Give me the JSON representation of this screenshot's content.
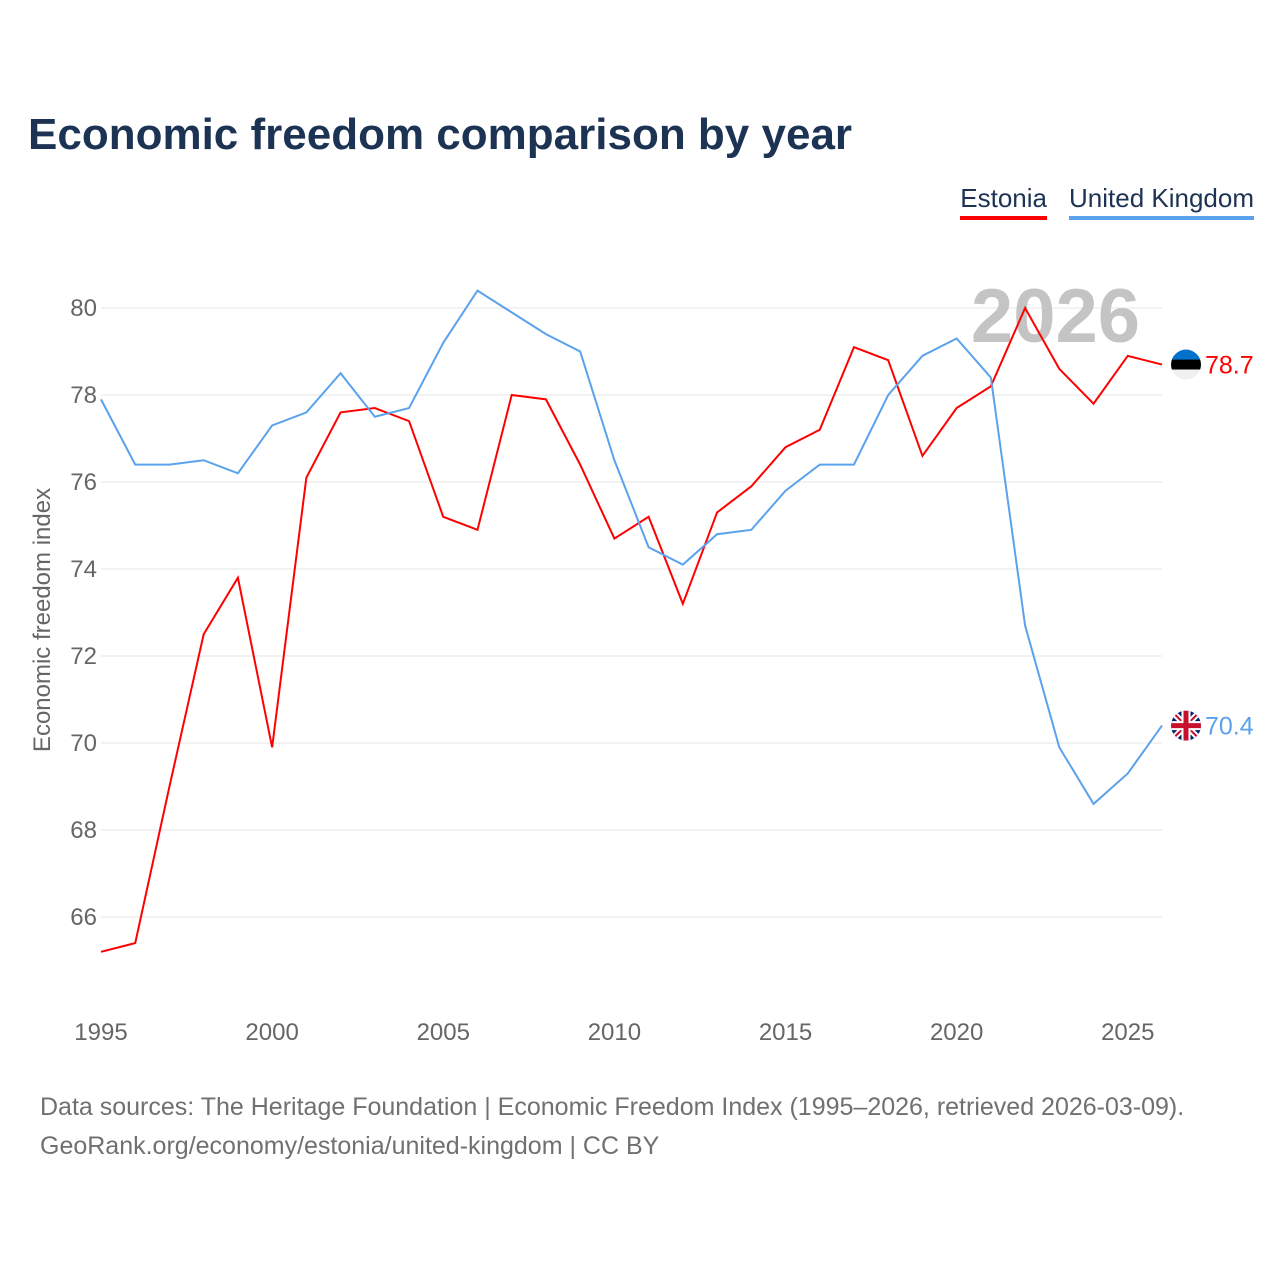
{
  "title": "Economic freedom comparison by year",
  "legend": [
    "Estonia",
    "United Kingdom"
  ],
  "year_watermark": "2026",
  "sources": {
    "line1": "Data sources: The Heritage Foundation | Economic Freedom Index (1995–2026, retrieved 2026-03-09).",
    "line2": "GeoRank.org/economy/estonia/united-kingdom | CC BY"
  },
  "chart_data": {
    "type": "line",
    "title": "Economic freedom comparison by year",
    "xlabel": "",
    "ylabel": "Economic freedom index",
    "x": [
      1995,
      1996,
      1997,
      1998,
      1999,
      2000,
      2001,
      2002,
      2003,
      2004,
      2005,
      2006,
      2007,
      2008,
      2009,
      2010,
      2011,
      2012,
      2013,
      2014,
      2015,
      2016,
      2017,
      2018,
      2019,
      2020,
      2021,
      2022,
      2023,
      2024,
      2025,
      2026
    ],
    "xticks": [
      "1995",
      "2000",
      "2005",
      "2010",
      "2015",
      "2020",
      "2025"
    ],
    "yticks": [
      "66",
      "68",
      "70",
      "72",
      "74",
      "76",
      "78",
      "80"
    ],
    "ylim": [
      64.1,
      81
    ],
    "grid": true,
    "legend_position": "top-right",
    "series": [
      {
        "name": "Estonia",
        "color": "#ff0000",
        "end_label": "78.7",
        "values": [
          65.2,
          65.4,
          69.0,
          72.5,
          73.8,
          69.9,
          76.1,
          77.6,
          77.7,
          77.4,
          75.2,
          74.9,
          78.0,
          77.9,
          76.4,
          74.7,
          75.2,
          73.2,
          75.3,
          75.9,
          76.8,
          77.2,
          79.1,
          78.8,
          76.6,
          77.7,
          78.2,
          80.0,
          78.6,
          77.8,
          78.9,
          78.7
        ]
      },
      {
        "name": "United Kingdom",
        "color": "#5aa2ec",
        "end_label": "70.4",
        "values": [
          77.9,
          76.4,
          76.4,
          76.5,
          76.2,
          77.3,
          77.6,
          78.5,
          77.5,
          77.7,
          79.2,
          80.4,
          79.9,
          79.4,
          79.0,
          76.5,
          74.5,
          74.1,
          74.8,
          74.9,
          75.8,
          76.4,
          76.4,
          78.0,
          78.9,
          79.3,
          78.4,
          72.7,
          69.9,
          68.6,
          69.3,
          70.4
        ]
      }
    ]
  }
}
